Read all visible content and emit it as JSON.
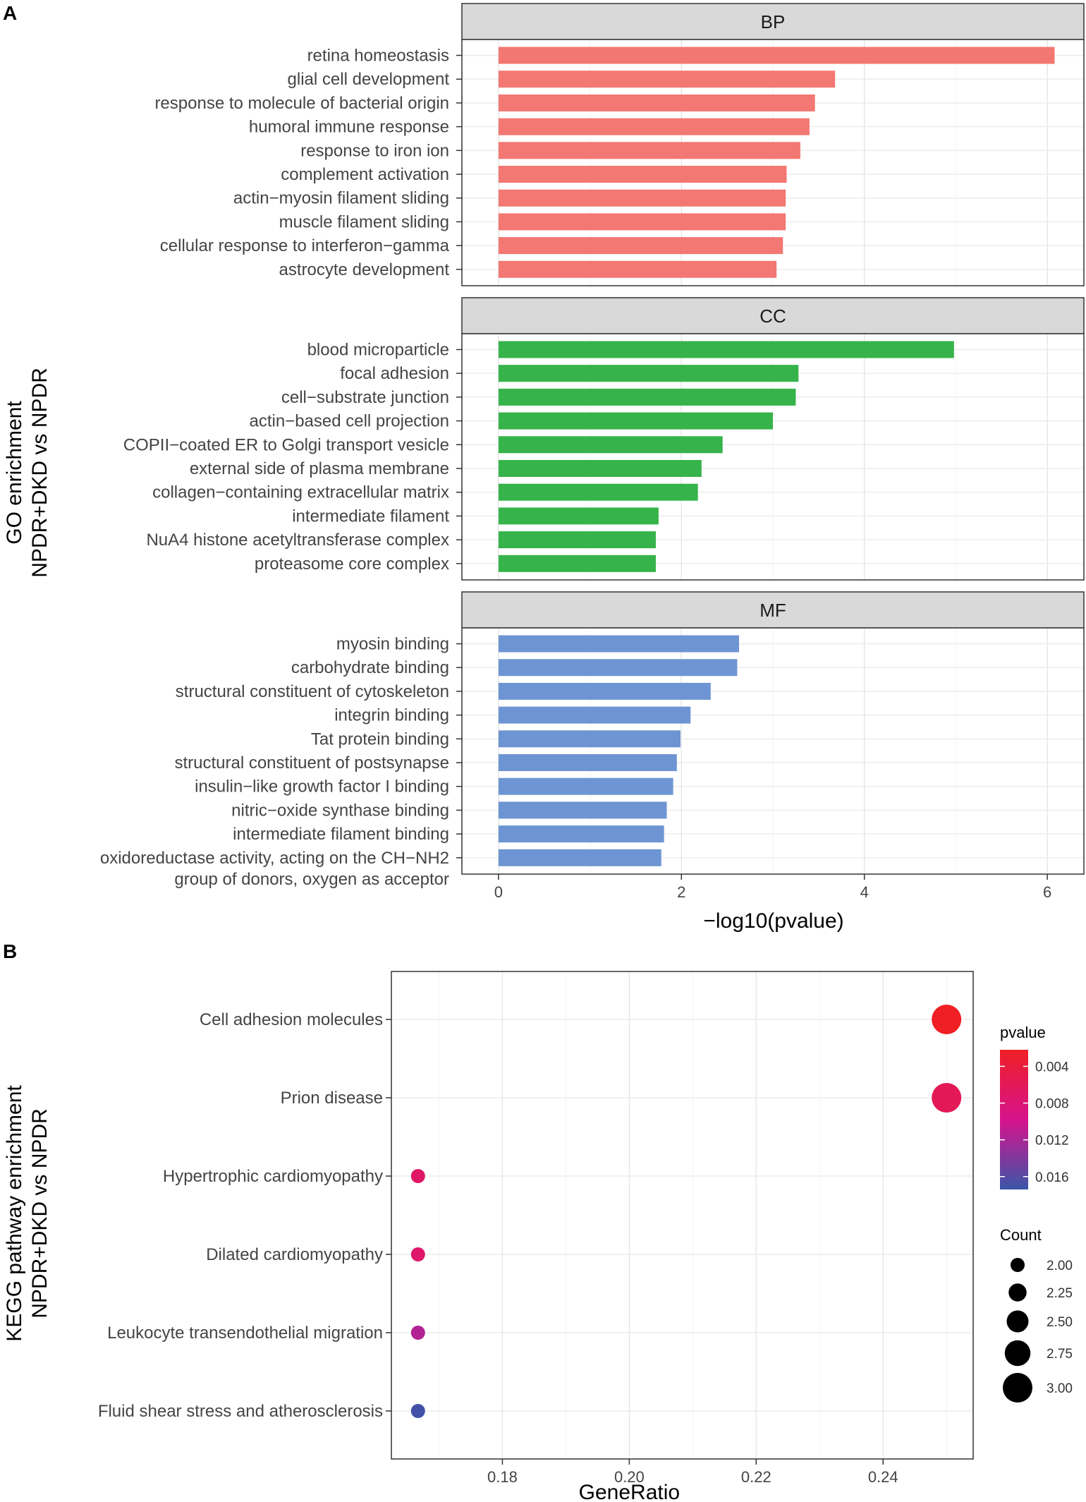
{
  "panel_labels": {
    "a": "A",
    "b": "B"
  },
  "chart_data": [
    {
      "type": "bar",
      "orientation": "horizontal",
      "facet_title": "BP",
      "categories": [
        "retina homeostasis",
        "glial cell development",
        "response to molecule of bacterial origin",
        "humoral immune response",
        "response to iron ion",
        "complement activation",
        "actin−myosin filament sliding",
        "muscle filament sliding",
        "cellular response to interferon−gamma",
        "astrocyte development"
      ],
      "values": [
        6.08,
        3.68,
        3.46,
        3.4,
        3.3,
        3.15,
        3.14,
        3.14,
        3.11,
        3.04
      ],
      "color": "#F37772",
      "xlim": [
        -0.4,
        6.4
      ],
      "xticks": [
        0,
        2,
        4,
        6
      ]
    },
    {
      "type": "bar",
      "orientation": "horizontal",
      "facet_title": "CC",
      "categories": [
        "blood microparticle",
        "focal adhesion",
        "cell−substrate junction",
        "actin−based cell projection",
        "COPII−coated ER to Golgi transport vesicle",
        "external side of plasma membrane",
        "collagen−containing extracellular matrix",
        "intermediate filament",
        "NuA4 histone acetyltransferase complex",
        "proteasome core complex"
      ],
      "values": [
        4.98,
        3.28,
        3.25,
        3.0,
        2.45,
        2.22,
        2.18,
        1.75,
        1.72,
        1.72
      ],
      "color": "#36B34A",
      "xlim": [
        -0.4,
        6.4
      ],
      "xticks": [
        0,
        2,
        4,
        6
      ]
    },
    {
      "type": "bar",
      "orientation": "horizontal",
      "facet_title": "MF",
      "categories": [
        "myosin binding",
        "carbohydrate binding",
        "structural constituent of cytoskeleton",
        "integrin binding",
        "Tat protein binding",
        "structural constituent of postsynapse",
        "insulin−like growth factor I binding",
        "nitric−oxide synthase binding",
        "intermediate filament binding",
        [
          "oxidoreductase activity, acting on the CH−NH2",
          "group of donors, oxygen as acceptor"
        ]
      ],
      "values": [
        2.63,
        2.61,
        2.32,
        2.1,
        1.99,
        1.95,
        1.91,
        1.84,
        1.81,
        1.78
      ],
      "color": "#6E95D3",
      "xlim": [
        -0.4,
        6.4
      ],
      "xticks": [
        0,
        2,
        4,
        6
      ],
      "xlabel": "−log10(pvalue)"
    },
    {
      "type": "scatter",
      "title": "",
      "ylabel_lines": [
        "KEGG pathway enrichment",
        "NPDR+DKD vs NPDR"
      ],
      "xlabel": "GeneRatio",
      "categories": [
        "Cell adhesion molecules",
        "Prion disease",
        "Hypertrophic cardiomyopathy",
        "Dilated cardiomyopathy",
        "Leukocyte transendothelial migration",
        "Fluid shear stress and atherosclerosis"
      ],
      "points": [
        {
          "category": "Cell adhesion molecules",
          "x": 0.25,
          "count": 3,
          "pvalue": 0.0022
        },
        {
          "category": "Prion disease",
          "x": 0.25,
          "count": 3,
          "pvalue": 0.0058
        },
        {
          "category": "Hypertrophic cardiomyopathy",
          "x": 0.1667,
          "count": 2,
          "pvalue": 0.007
        },
        {
          "category": "Dilated cardiomyopathy",
          "x": 0.1667,
          "count": 2,
          "pvalue": 0.0074
        },
        {
          "category": "Leukocyte transendothelial migration",
          "x": 0.1667,
          "count": 2,
          "pvalue": 0.0115
        },
        {
          "category": "Fluid shear stress and atherosclerosis",
          "x": 0.1667,
          "count": 2,
          "pvalue": 0.017
        }
      ],
      "xlim": [
        0.1625,
        0.2542
      ],
      "xticks": [
        0.18,
        0.2,
        0.22,
        0.24
      ],
      "xtick_labels": [
        "0.18",
        "0.20",
        "0.22",
        "0.24"
      ],
      "legend": {
        "color_title": "pvalue",
        "color_range": [
          0.0022,
          0.0174
        ],
        "color_ticks": [
          0.004,
          0.008,
          0.012,
          0.016
        ],
        "color_tick_labels": [
          "0.004",
          "0.008",
          "0.012",
          "0.016"
        ],
        "color_low": "#EF1F24",
        "color_mid": "#D6138D",
        "color_high": "#3B56A8",
        "size_title": "Count",
        "size_values": [
          2.0,
          2.25,
          2.5,
          2.75,
          3.0
        ],
        "size_labels": [
          "2.00",
          "2.25",
          "2.50",
          "2.75",
          "3.00"
        ]
      }
    }
  ],
  "go_axis": {
    "ylabel_lines": [
      "GO enrichment",
      "NPDR+DKD vs NPDR"
    ],
    "xlabel": "−log10(pvalue)"
  }
}
